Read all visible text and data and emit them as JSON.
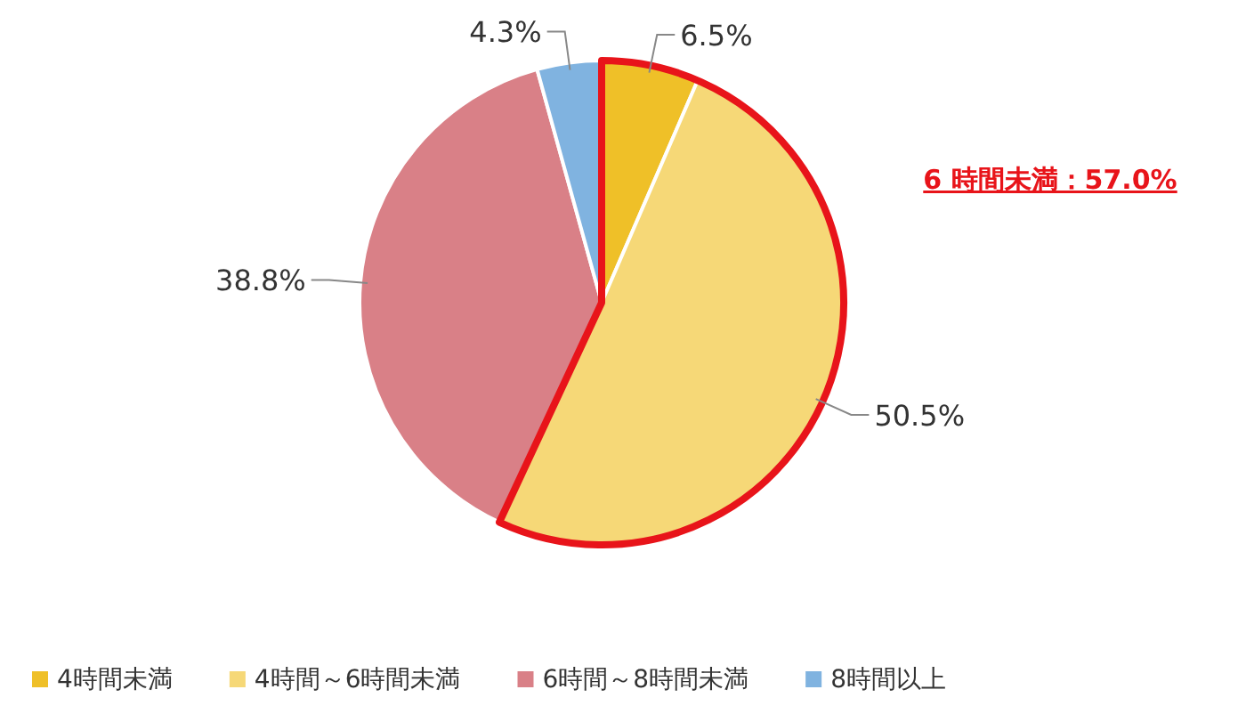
{
  "chart_data": {
    "type": "pie",
    "categories": [
      "4時間未満",
      "4時間～6時間未満",
      "6時間～8時間未満",
      "8時間以上"
    ],
    "values": [
      6.5,
      50.5,
      38.8,
      4.3
    ],
    "value_labels": [
      "6.5%",
      "50.5%",
      "38.8%",
      "4.3%"
    ],
    "colors": [
      "#efc028",
      "#f6d877",
      "#d98087",
      "#80b3e0"
    ],
    "legend": "bottom",
    "annotations": [
      "6 時間未満：57.0%"
    ]
  }
}
